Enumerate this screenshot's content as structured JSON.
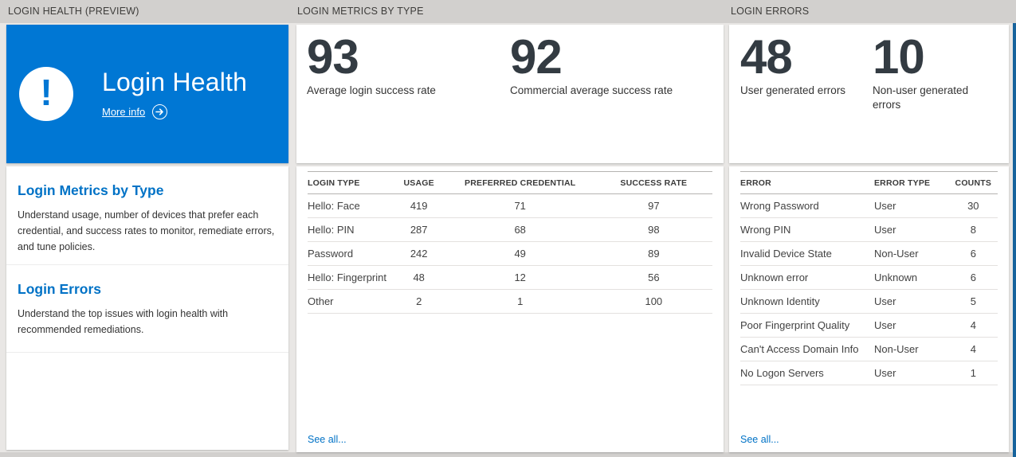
{
  "band": {
    "left_title": "LOGIN HEALTH (PREVIEW)",
    "middle_title": "LOGIN METRICS BY TYPE",
    "right_title": "LOGIN ERRORS"
  },
  "hero": {
    "title": "Login Health",
    "more_info_label": "More info",
    "icon": "exclamation-icon",
    "tile_color": "#0077d4"
  },
  "nav_sections": [
    {
      "title": "Login Metrics by Type",
      "description": "Understand usage, number of devices that prefer each credential, and success rates to monitor, remediate errors, and tune policies."
    },
    {
      "title": "Login Errors",
      "description": "Understand the top issues with login health with recommended remediations."
    }
  ],
  "metrics_panel": {
    "stats": [
      {
        "value": "93",
        "label": "Average login success rate"
      },
      {
        "value": "92",
        "label": "Commercial average success rate"
      }
    ],
    "table": {
      "columns": [
        "LOGIN TYPE",
        "USAGE",
        "PREFERRED CREDENTIAL",
        "SUCCESS RATE"
      ],
      "rows": [
        [
          "Hello: Face",
          "419",
          "71",
          "97"
        ],
        [
          "Hello: PIN",
          "287",
          "68",
          "98"
        ],
        [
          "Password",
          "242",
          "49",
          "89"
        ],
        [
          "Hello: Fingerprint",
          "48",
          "12",
          "56"
        ],
        [
          "Other",
          "2",
          "1",
          "100"
        ]
      ]
    },
    "see_all_label": "See all..."
  },
  "errors_panel": {
    "stats": [
      {
        "value": "48",
        "label": "User generated errors"
      },
      {
        "value": "10",
        "label": "Non-user generated errors"
      }
    ],
    "table": {
      "columns": [
        "ERROR",
        "ERROR TYPE",
        "COUNTS"
      ],
      "rows": [
        [
          "Wrong Password",
          "User",
          "30"
        ],
        [
          "Wrong PIN",
          "User",
          "8"
        ],
        [
          "Invalid Device State",
          "Non-User",
          "6"
        ],
        [
          "Unknown error",
          "Unknown",
          "6"
        ],
        [
          "Unknown Identity",
          "User",
          "5"
        ],
        [
          "Poor Fingerprint Quality",
          "User",
          "4"
        ],
        [
          "Can't Access Domain Info",
          "Non-User",
          "4"
        ],
        [
          "No Logon Servers",
          "User",
          "1"
        ]
      ]
    },
    "see_all_label": "See all..."
  },
  "colors": {
    "tile_blue": "#0077d4",
    "link_blue": "#0072c6",
    "stat_number": "#333b42",
    "next_tile_edge_blue": "#17639c"
  }
}
